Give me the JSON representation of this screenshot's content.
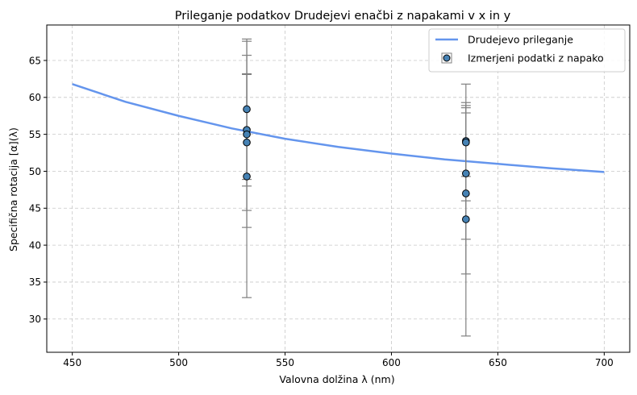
{
  "chart_data": {
    "type": "scatter",
    "title": "Prileganje podatkov Drudejevi enačbi z napakami v x in y",
    "xlabel": "Valovna dolžina λ (nm)",
    "ylabel": "Specifična rotacija [α](λ)",
    "xlim": [
      438,
      712
    ],
    "ylim": [
      25.5,
      69.8
    ],
    "xticks": [
      450,
      500,
      550,
      600,
      650,
      700
    ],
    "yticks": [
      30,
      35,
      40,
      45,
      50,
      55,
      60,
      65
    ],
    "grid": true,
    "legend_position": "top-right",
    "series": [
      {
        "name": "Drudejevo prileganje",
        "kind": "line",
        "color": "#6495ED",
        "x": [
          450,
          475,
          500,
          525,
          550,
          575,
          600,
          625,
          650,
          675,
          700
        ],
        "y": [
          61.8,
          59.4,
          57.5,
          55.8,
          54.4,
          53.3,
          52.4,
          51.6,
          51.0,
          50.4,
          49.9
        ]
      },
      {
        "name": "Izmerjeni podatki z napako",
        "kind": "errorbar",
        "marker_color": "#4682B4",
        "errorbar_color": "#808080",
        "points": [
          {
            "x": 532,
            "y": 58.4,
            "yerr": 9.5
          },
          {
            "x": 532,
            "y": 55.6,
            "yerr": 7.6
          },
          {
            "x": 532,
            "y": 55.0,
            "yerr": 12.6
          },
          {
            "x": 532,
            "y": 53.9,
            "yerr": 9.2
          },
          {
            "x": 532,
            "y": 49.3,
            "yerr": 16.4
          },
          {
            "x": 635,
            "y": 54.1,
            "yerr": 4.8
          },
          {
            "x": 635,
            "y": 53.9,
            "yerr": 7.9
          },
          {
            "x": 635,
            "y": 49.7,
            "yerr": 8.9
          },
          {
            "x": 635,
            "y": 47.0,
            "yerr": 10.9
          },
          {
            "x": 635,
            "y": 43.5,
            "yerr": 15.8
          }
        ]
      }
    ]
  }
}
